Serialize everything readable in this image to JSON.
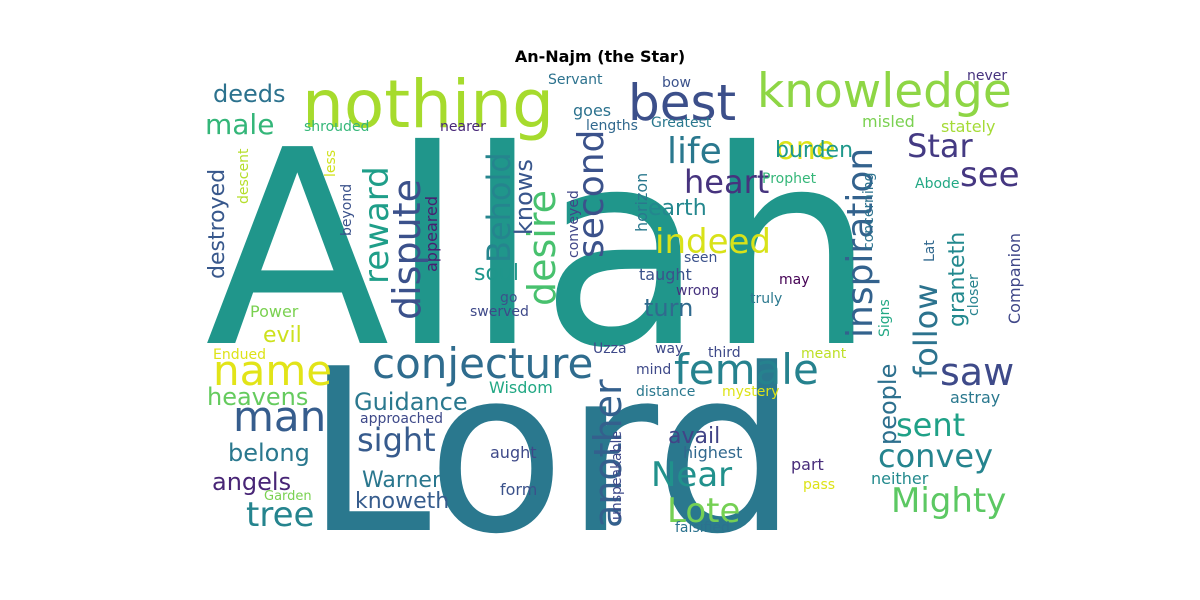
{
  "chart_data": {
    "type": "wordcloud",
    "title": "An-Najm (the Star)",
    "colormap": "viridis",
    "words": [
      {
        "text": "Allah",
        "weight": 1.0,
        "color": "#20968b",
        "rot": false
      },
      {
        "text": "Lord",
        "weight": 0.83,
        "color": "#2a788e",
        "rot": false
      },
      {
        "text": "nothing",
        "weight": 0.34,
        "color": "#a6db2d",
        "rot": false
      },
      {
        "text": "best",
        "weight": 0.22,
        "color": "#3c4f8a",
        "rot": false
      },
      {
        "text": "knowledge",
        "weight": 0.23,
        "color": "#8ed645",
        "rot": false
      },
      {
        "text": "conjecture",
        "weight": 0.24,
        "color": "#2f6c8e",
        "rot": false
      },
      {
        "text": "female",
        "weight": 0.21,
        "color": "#26828e",
        "rot": false
      },
      {
        "text": "man",
        "weight": 0.2,
        "color": "#365d8d",
        "rot": false
      },
      {
        "text": "name",
        "weight": 0.19,
        "color": "#e2e418",
        "rot": false
      },
      {
        "text": "desire",
        "weight": 0.2,
        "color": "#48c16e",
        "rot": true
      },
      {
        "text": "dispute",
        "weight": 0.19,
        "color": "#3b518b",
        "rot": true
      },
      {
        "text": "another",
        "weight": 0.19,
        "color": "#34608d",
        "rot": true
      },
      {
        "text": "inspiration",
        "weight": 0.19,
        "color": "#33628d",
        "rot": true
      },
      {
        "text": "second",
        "weight": 0.17,
        "color": "#3b528b",
        "rot": true
      },
      {
        "text": "reward",
        "weight": 0.16,
        "color": "#1f9e89",
        "rot": true
      },
      {
        "text": "saw",
        "weight": 0.16,
        "color": "#3e4a89",
        "rot": false
      },
      {
        "text": "follow",
        "weight": 0.16,
        "color": "#2c738e",
        "rot": true
      },
      {
        "text": "Mighty",
        "weight": 0.15,
        "color": "#5cc863",
        "rot": false
      },
      {
        "text": "Behold",
        "weight": 0.15,
        "color": "#25858e",
        "rot": true
      },
      {
        "text": "tree",
        "weight": 0.14,
        "color": "#25848e",
        "rot": false
      },
      {
        "text": "Near",
        "weight": 0.14,
        "color": "#21918c",
        "rot": false
      },
      {
        "text": "Lote",
        "weight": 0.14,
        "color": "#75d054",
        "rot": false
      },
      {
        "text": "life",
        "weight": 0.14,
        "color": "#2a788e",
        "rot": false
      },
      {
        "text": "indeed",
        "weight": 0.14,
        "color": "#d8e219",
        "rot": false
      },
      {
        "text": "heart",
        "weight": 0.14,
        "color": "#46337e",
        "rot": false
      },
      {
        "text": "see",
        "weight": 0.14,
        "color": "#453781",
        "rot": false
      },
      {
        "text": "Star",
        "weight": 0.14,
        "color": "#443a83",
        "rot": false
      },
      {
        "text": "sight",
        "weight": 0.14,
        "color": "#375b8d",
        "rot": false
      },
      {
        "text": "sent",
        "weight": 0.14,
        "color": "#1fa187",
        "rot": false
      },
      {
        "text": "convey",
        "weight": 0.14,
        "color": "#25848e",
        "rot": false
      },
      {
        "text": "one",
        "weight": 0.14,
        "color": "#dde318",
        "rot": false
      },
      {
        "text": "people",
        "weight": 0.12,
        "color": "#2d708e",
        "rot": true
      },
      {
        "text": "granteth",
        "weight": 0.11,
        "color": "#23898e",
        "rot": true
      },
      {
        "text": "male",
        "weight": 0.11,
        "color": "#34b679",
        "rot": false
      },
      {
        "text": "Guidance",
        "weight": 0.11,
        "color": "#2a788e",
        "rot": false
      },
      {
        "text": "heavens",
        "weight": 0.11,
        "color": "#65cb5e",
        "rot": false
      },
      {
        "text": "belong",
        "weight": 0.11,
        "color": "#2a788e",
        "rot": false
      },
      {
        "text": "angels",
        "weight": 0.11,
        "color": "#482576",
        "rot": false
      },
      {
        "text": "knows",
        "weight": 0.11,
        "color": "#39568c",
        "rot": true
      },
      {
        "text": "destroyed",
        "weight": 0.1,
        "color": "#38588c",
        "rot": true
      },
      {
        "text": "deeds",
        "weight": 0.1,
        "color": "#2c728e",
        "rot": false
      },
      {
        "text": "burden",
        "weight": 0.1,
        "color": "#1f988b",
        "rot": false
      },
      {
        "text": "turn",
        "weight": 0.1,
        "color": "#306a8e",
        "rot": false
      },
      {
        "text": "soul",
        "weight": 0.1,
        "color": "#1f968b",
        "rot": false
      },
      {
        "text": "earth",
        "weight": 0.09,
        "color": "#24878e",
        "rot": false
      },
      {
        "text": "evil",
        "weight": 0.09,
        "color": "#cde11d",
        "rot": false
      },
      {
        "text": "Warner",
        "weight": 0.09,
        "color": "#2a778e",
        "rot": false
      },
      {
        "text": "knoweth",
        "weight": 0.09,
        "color": "#365c8d",
        "rot": false
      },
      {
        "text": "avail",
        "weight": 0.09,
        "color": "#414487",
        "rot": false
      },
      {
        "text": "Companion",
        "weight": 0.07,
        "color": "#3f4788",
        "rot": true
      },
      {
        "text": "Wisdom",
        "weight": 0.07,
        "color": "#22a884",
        "rot": false
      },
      {
        "text": "Power",
        "weight": 0.07,
        "color": "#7ad151",
        "rot": false
      },
      {
        "text": "taught",
        "weight": 0.07,
        "color": "#3b528b",
        "rot": false
      },
      {
        "text": "highest",
        "weight": 0.07,
        "color": "#31688e",
        "rot": false
      },
      {
        "text": "part",
        "weight": 0.07,
        "color": "#472c7a",
        "rot": false
      },
      {
        "text": "neither",
        "weight": 0.07,
        "color": "#238a8d",
        "rot": false
      },
      {
        "text": "astray",
        "weight": 0.07,
        "color": "#2a788e",
        "rot": false
      },
      {
        "text": "stately",
        "weight": 0.07,
        "color": "#a5db36",
        "rot": false
      },
      {
        "text": "misled",
        "weight": 0.07,
        "color": "#7ad151",
        "rot": false
      },
      {
        "text": "Endued",
        "weight": 0.06,
        "color": "#dde318",
        "rot": false
      },
      {
        "text": "goes",
        "weight": 0.06,
        "color": "#2c728e",
        "rot": false
      },
      {
        "text": "aught",
        "weight": 0.06,
        "color": "#3e4989",
        "rot": false
      },
      {
        "text": "form",
        "weight": 0.06,
        "color": "#3b528b",
        "rot": false
      },
      {
        "text": "appeared",
        "weight": 0.06,
        "color": "#481f70",
        "rot": true
      },
      {
        "text": "horizon",
        "weight": 0.06,
        "color": "#2a788e",
        "rot": true
      },
      {
        "text": "Servant",
        "weight": 0.05,
        "color": "#2c728e",
        "rot": false
      },
      {
        "text": "bow",
        "weight": 0.05,
        "color": "#3b528b",
        "rot": false
      },
      {
        "text": "never",
        "weight": 0.05,
        "color": "#46327e",
        "rot": false
      },
      {
        "text": "nearer",
        "weight": 0.05,
        "color": "#482878",
        "rot": false
      },
      {
        "text": "lengths",
        "weight": 0.05,
        "color": "#31688e",
        "rot": false
      },
      {
        "text": "Greatest",
        "weight": 0.05,
        "color": "#2a788e",
        "rot": false
      },
      {
        "text": "shrouded",
        "weight": 0.05,
        "color": "#35b779",
        "rot": false
      },
      {
        "text": "less",
        "weight": 0.05,
        "color": "#d0e11c",
        "rot": true
      },
      {
        "text": "descent",
        "weight": 0.05,
        "color": "#b5de2b",
        "rot": true
      },
      {
        "text": "beyond",
        "weight": 0.05,
        "color": "#3b528b",
        "rot": true
      },
      {
        "text": "conveyed",
        "weight": 0.05,
        "color": "#404688",
        "rot": true
      },
      {
        "text": "Prophet",
        "weight": 0.05,
        "color": "#35b779",
        "rot": false
      },
      {
        "text": "concerning",
        "weight": 0.05,
        "color": "#2c728e",
        "rot": true
      },
      {
        "text": "Abode",
        "weight": 0.05,
        "color": "#22a884",
        "rot": false
      },
      {
        "text": "seen",
        "weight": 0.05,
        "color": "#3b528b",
        "rot": false
      },
      {
        "text": "wrong",
        "weight": 0.05,
        "color": "#46327e",
        "rot": false
      },
      {
        "text": "go",
        "weight": 0.05,
        "color": "#3b528b",
        "rot": false
      },
      {
        "text": "swerved",
        "weight": 0.05,
        "color": "#3e4989",
        "rot": false
      },
      {
        "text": "may",
        "weight": 0.05,
        "color": "#440154",
        "rot": false
      },
      {
        "text": "truly",
        "weight": 0.05,
        "color": "#2a788e",
        "rot": false
      },
      {
        "text": "Lat",
        "weight": 0.05,
        "color": "#31688e",
        "rot": true
      },
      {
        "text": "closer",
        "weight": 0.05,
        "color": "#26828e",
        "rot": true
      },
      {
        "text": "Signs",
        "weight": 0.05,
        "color": "#22a884",
        "rot": true
      },
      {
        "text": "Uzza",
        "weight": 0.05,
        "color": "#3e4989",
        "rot": false
      },
      {
        "text": "way",
        "weight": 0.05,
        "color": "#3e4989",
        "rot": false
      },
      {
        "text": "third",
        "weight": 0.05,
        "color": "#3e4989",
        "rot": false
      },
      {
        "text": "meant",
        "weight": 0.05,
        "color": "#bddf26",
        "rot": false
      },
      {
        "text": "mind",
        "weight": 0.05,
        "color": "#3e4989",
        "rot": false
      },
      {
        "text": "distance",
        "weight": 0.05,
        "color": "#2a788e",
        "rot": false
      },
      {
        "text": "mystery",
        "weight": 0.05,
        "color": "#dde318",
        "rot": false
      },
      {
        "text": "approached",
        "weight": 0.05,
        "color": "#3e4989",
        "rot": false
      },
      {
        "text": "unspeakable",
        "weight": 0.05,
        "color": "#3e4989",
        "rot": true
      },
      {
        "text": "pass",
        "weight": 0.05,
        "color": "#dde318",
        "rot": false
      },
      {
        "text": "Garden",
        "weight": 0.05,
        "color": "#7ad151",
        "rot": false
      },
      {
        "text": "falsified",
        "weight": 0.05,
        "color": "#2c728e",
        "rot": false
      }
    ]
  }
}
